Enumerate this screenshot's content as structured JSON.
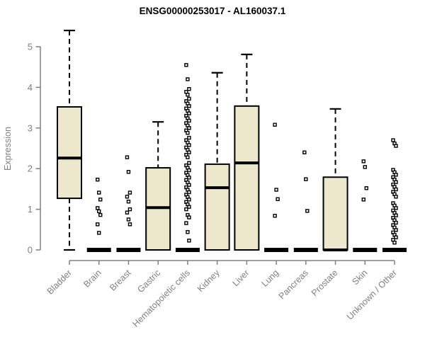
{
  "chart_data": {
    "type": "boxplot",
    "title": "ENSG00000253017 - AL160037.1",
    "xlabel": "",
    "ylabel": "Expression",
    "ylim": [
      0,
      5.4
    ],
    "yticks": [
      0,
      1,
      2,
      3,
      4,
      5
    ],
    "grid": false,
    "legend": "none",
    "box_fill": "#ede8cc",
    "box_stroke": "#000000",
    "axis_color": "#808080",
    "label_color": "#808080",
    "categories": [
      {
        "label": "Bladder",
        "low": 0,
        "q1": 1.27,
        "median": 2.26,
        "q3": 3.52,
        "high": 5.4,
        "outliers": []
      },
      {
        "label": "Brain",
        "low": 0,
        "q1": 0,
        "median": 0,
        "q3": 0,
        "high": 0,
        "outliers": [
          1.73,
          1.41,
          1.24,
          1.03,
          0.95,
          0.86,
          0.63,
          0.42
        ]
      },
      {
        "label": "Breast",
        "low": 0,
        "q1": 0,
        "median": 0,
        "q3": 0,
        "high": 0,
        "outliers": [
          2.28,
          1.92,
          1.41,
          1.31,
          1.19,
          1.0,
          0.92,
          0.75,
          0.63
        ]
      },
      {
        "label": "Gastric",
        "low": 0,
        "q1": 0,
        "median": 1.04,
        "q3": 2.02,
        "high": 3.15,
        "outliers": []
      },
      {
        "label": "Hematopoietic cells",
        "low": 0,
        "q1": 0,
        "median": 0,
        "q3": 0,
        "high": 0,
        "outliers": [
          4.55,
          4.2,
          3.96,
          3.89,
          3.82,
          3.72,
          3.66,
          3.6,
          3.54,
          3.48,
          3.42,
          3.36,
          3.3,
          3.24,
          3.18,
          3.12,
          3.06,
          3.0,
          2.94,
          2.88,
          2.76,
          2.7,
          2.64,
          2.58,
          2.52,
          2.46,
          2.4,
          2.34,
          2.28,
          2.14,
          2.08,
          2.02,
          1.96,
          1.9,
          1.84,
          1.78,
          1.72,
          1.66,
          1.6,
          1.54,
          1.48,
          1.42,
          1.36,
          1.3,
          1.24,
          1.18,
          1.12,
          1.06,
          1.0,
          0.86,
          0.8,
          0.66,
          0.44,
          0.23
        ]
      },
      {
        "label": "Kidney",
        "low": 0,
        "q1": 0,
        "median": 1.53,
        "q3": 2.11,
        "high": 4.36,
        "outliers": []
      },
      {
        "label": "Liver",
        "low": 0,
        "q1": 0,
        "median": 2.14,
        "q3": 3.54,
        "high": 4.81,
        "outliers": []
      },
      {
        "label": "Lung",
        "low": 0,
        "q1": 0,
        "median": 0,
        "q3": 0,
        "high": 0,
        "outliers": [
          3.08,
          1.48,
          1.25,
          0.84
        ]
      },
      {
        "label": "Pancreas",
        "low": 0,
        "q1": 0,
        "median": 0,
        "q3": 0,
        "high": 0,
        "outliers": [
          2.4,
          1.74,
          0.96
        ]
      },
      {
        "label": "Prostate",
        "low": 0,
        "q1": 0,
        "median": 0,
        "q3": 1.79,
        "high": 3.47,
        "outliers": []
      },
      {
        "label": "Skin",
        "low": 0,
        "q1": 0,
        "median": 0,
        "q3": 0,
        "high": 0,
        "outliers": [
          2.18,
          2.04,
          1.52,
          1.24
        ]
      },
      {
        "label": "Unknown / Other",
        "low": 0,
        "q1": 0,
        "median": 0,
        "q3": 0,
        "high": 0,
        "outliers": [
          2.7,
          2.62,
          2.56,
          1.97,
          1.91,
          1.85,
          1.79,
          1.73,
          1.67,
          1.61,
          1.55,
          1.49,
          1.43,
          1.37,
          1.31,
          1.15,
          1.09,
          1.03,
          0.97,
          0.91,
          0.85,
          0.79,
          0.73,
          0.67,
          0.61,
          0.55,
          0.49,
          0.43,
          0.37,
          0.31,
          0.25,
          0.18
        ]
      }
    ]
  }
}
